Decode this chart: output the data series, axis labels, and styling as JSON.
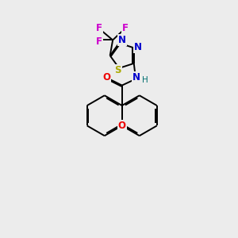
{
  "bg_color": "#ececec",
  "bond_color": "#000000",
  "atom_colors": {
    "F": "#cc00cc",
    "S": "#aaaa00",
    "N": "#0000cc",
    "O": "#ee0000",
    "H": "#007070"
  },
  "lw": 1.4,
  "xlim": [
    0,
    10
  ],
  "ylim": [
    0,
    10
  ]
}
